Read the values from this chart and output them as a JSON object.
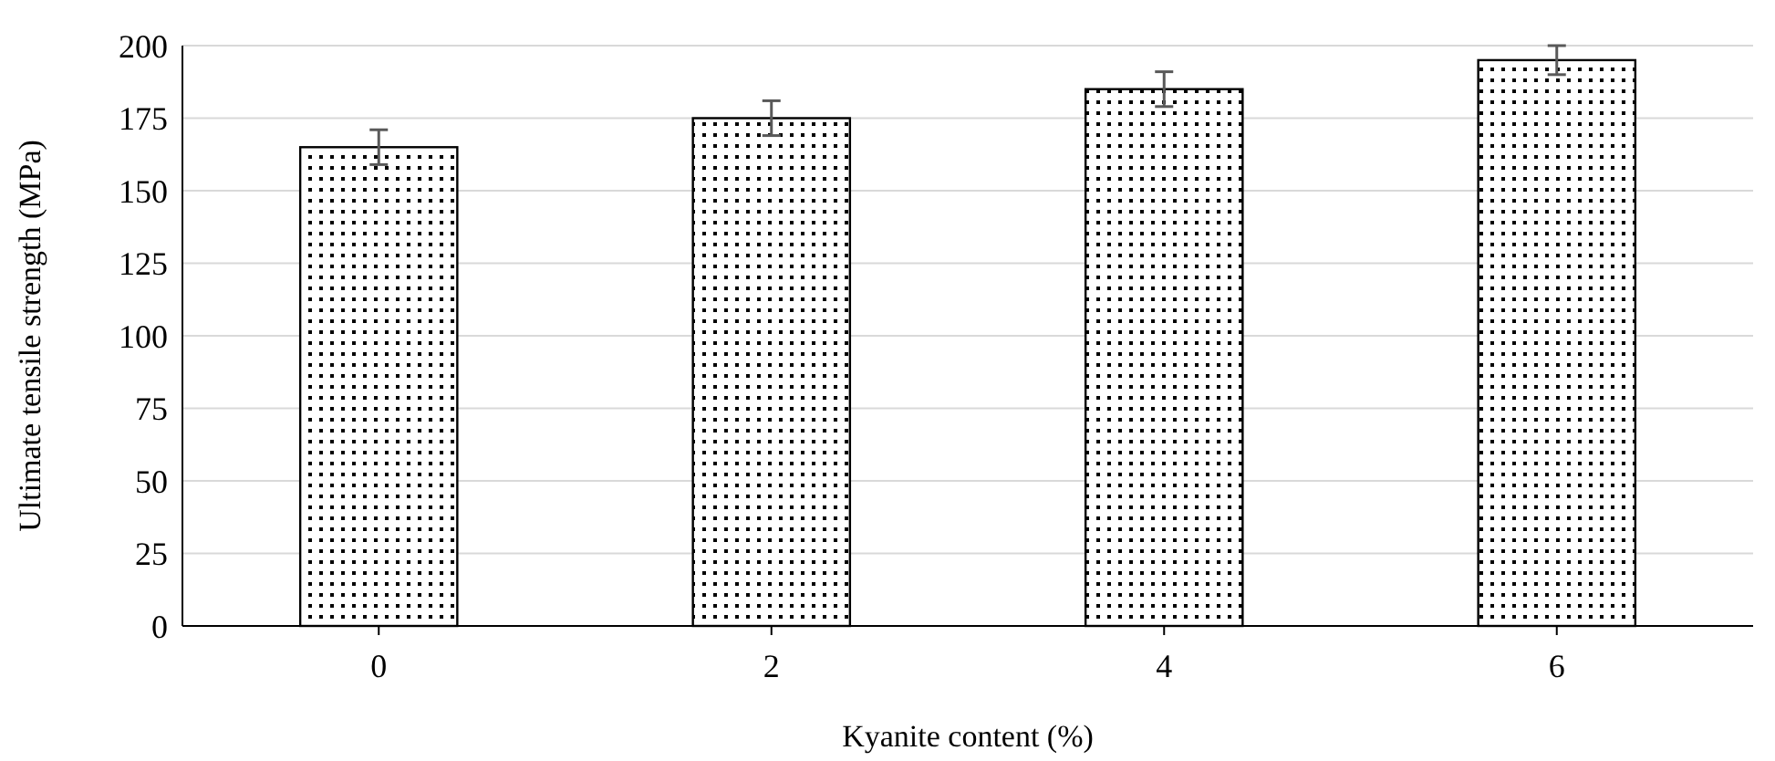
{
  "chart_data": {
    "type": "bar",
    "xlabel": "Kyanite content (%)",
    "ylabel": "Ultimate tensile strength (MPa)",
    "categories": [
      "0",
      "2",
      "4",
      "6"
    ],
    "values": [
      165,
      175,
      185,
      195
    ],
    "errors": [
      6,
      6,
      6,
      5
    ],
    "color": "#000000",
    "ylim": [
      0,
      200
    ],
    "yticks": [
      0,
      25,
      50,
      75,
      100,
      125,
      150,
      175,
      200
    ],
    "grid": "y"
  }
}
